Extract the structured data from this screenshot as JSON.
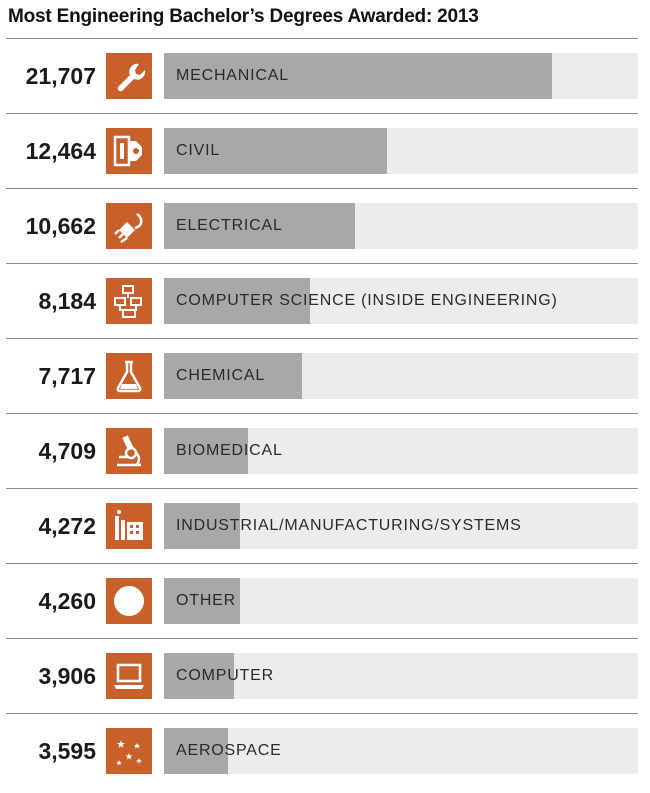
{
  "chart_data": {
    "type": "bar",
    "orientation": "horizontal",
    "title": "Most Engineering Bachelor’s Degrees Awarded: 2013",
    "xlabel": "",
    "ylabel": "",
    "xlim": [
      0,
      26500
    ],
    "categories": [
      "MECHANICAL",
      "CIVIL",
      "ELECTRICAL",
      "COMPUTER SCIENCE (INSIDE ENGINEERING)",
      "CHEMICAL",
      "BIOMEDICAL",
      "INDUSTRIAL/MANUFACTURING/SYSTEMS",
      "OTHER",
      "COMPUTER",
      "AEROSPACE"
    ],
    "values": [
      21707,
      12464,
      10662,
      8184,
      7717,
      4709,
      4272,
      4260,
      3906,
      3595
    ],
    "value_labels": [
      "21,707",
      "12,464",
      "10,662",
      "8,184",
      "7,717",
      "4,709",
      "4,272",
      "4,260",
      "3,906",
      "3,595"
    ],
    "icons": [
      "wrench-icon",
      "building-icon",
      "plug-icon",
      "flowchart-icon",
      "flask-icon",
      "microscope-icon",
      "factory-icon",
      "circle-icon",
      "laptop-icon",
      "stars-icon"
    ]
  },
  "colors": {
    "icon_background": "#c8602c",
    "bar_fill": "#a7a8aa",
    "bar_track": "#ececec",
    "divider": "#8a8a8a"
  }
}
